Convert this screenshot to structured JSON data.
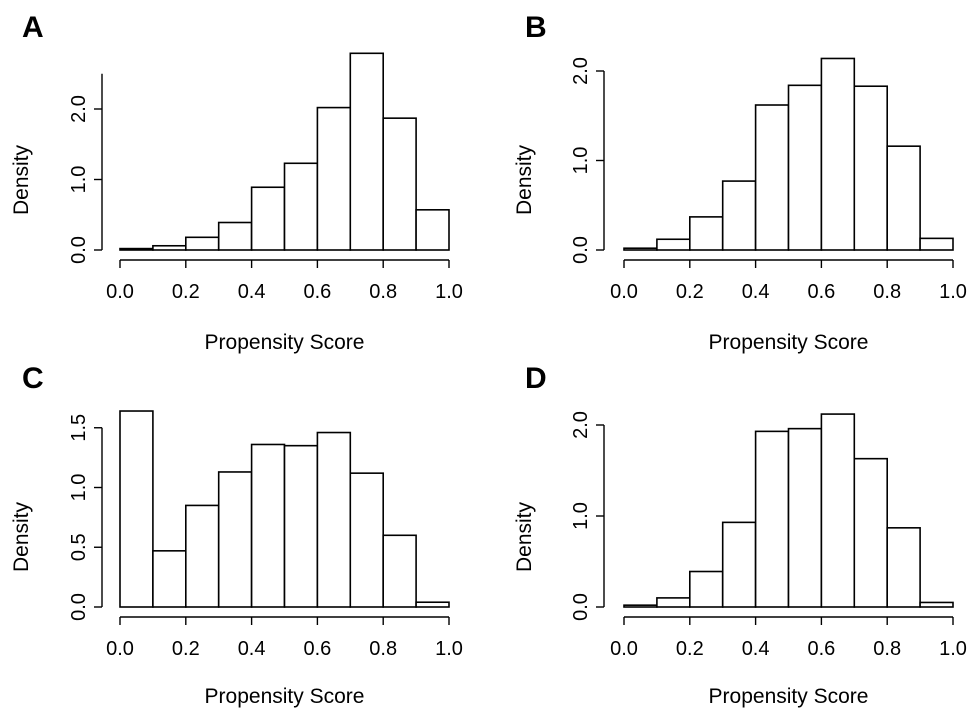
{
  "chart_data": [
    {
      "panel_label": "A",
      "type": "bar",
      "xlabel": "Propensity Score",
      "ylabel": "Density",
      "x_ticks": [
        "0.0",
        "0.2",
        "0.4",
        "0.6",
        "0.8",
        "1.0"
      ],
      "y_ticks": [
        "0.0",
        "1.0",
        "2.0"
      ],
      "bin_edges": [
        0.0,
        0.1,
        0.2,
        0.3,
        0.4,
        0.5,
        0.6,
        0.7,
        0.8,
        0.9,
        1.0
      ],
      "values": [
        0.02,
        0.06,
        0.18,
        0.39,
        0.89,
        1.23,
        2.02,
        2.79,
        1.87,
        0.57
      ],
      "xlim": [
        0,
        1
      ],
      "ylim": [
        0,
        2.5
      ]
    },
    {
      "panel_label": "B",
      "type": "bar",
      "xlabel": "Propensity Score",
      "ylabel": "Density",
      "x_ticks": [
        "0.0",
        "0.2",
        "0.4",
        "0.6",
        "0.8",
        "1.0"
      ],
      "y_ticks": [
        "0.0",
        "1.0",
        "2.0"
      ],
      "bin_edges": [
        0.0,
        0.1,
        0.2,
        0.3,
        0.4,
        0.5,
        0.6,
        0.7,
        0.8,
        0.9,
        1.0
      ],
      "values": [
        0.02,
        0.12,
        0.37,
        0.77,
        1.62,
        1.84,
        2.14,
        1.83,
        1.16,
        0.13
      ],
      "xlim": [
        0,
        1
      ],
      "ylim": [
        0,
        2.0
      ]
    },
    {
      "panel_label": "C",
      "type": "bar",
      "xlabel": "Propensity Score",
      "ylabel": "Density",
      "x_ticks": [
        "0.0",
        "0.2",
        "0.4",
        "0.6",
        "0.8",
        "1.0"
      ],
      "y_ticks": [
        "0.0",
        "0.5",
        "1.0",
        "1.5"
      ],
      "bin_edges": [
        0.0,
        0.1,
        0.2,
        0.3,
        0.4,
        0.5,
        0.6,
        0.7,
        0.8,
        0.9,
        1.0
      ],
      "values": [
        1.64,
        0.47,
        0.85,
        1.13,
        1.36,
        1.35,
        1.46,
        1.12,
        0.6,
        0.04
      ],
      "xlim": [
        0,
        1
      ],
      "ylim": [
        0,
        1.5
      ]
    },
    {
      "panel_label": "D",
      "type": "bar",
      "xlabel": "Propensity Score",
      "ylabel": "Density",
      "x_ticks": [
        "0.0",
        "0.2",
        "0.4",
        "0.6",
        "0.8",
        "1.0"
      ],
      "y_ticks": [
        "0.0",
        "1.0",
        "2.0"
      ],
      "bin_edges": [
        0.0,
        0.1,
        0.2,
        0.3,
        0.4,
        0.5,
        0.6,
        0.7,
        0.8,
        0.9,
        1.0
      ],
      "values": [
        0.02,
        0.1,
        0.39,
        0.93,
        1.93,
        1.96,
        2.12,
        1.63,
        0.87,
        0.05
      ],
      "xlim": [
        0,
        1
      ],
      "ylim": [
        0,
        2.0
      ]
    }
  ]
}
